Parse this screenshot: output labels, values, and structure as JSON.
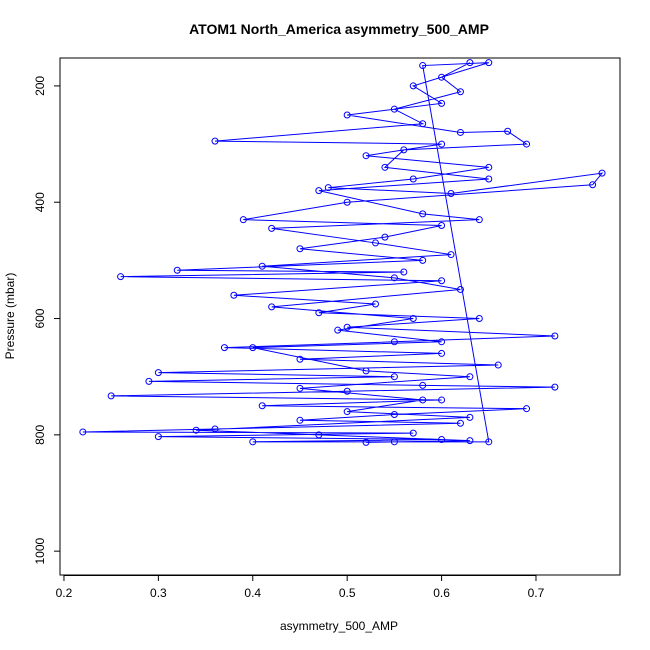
{
  "chart_data": {
    "type": "line",
    "title": "ATOM1 North_America asymmetry_500_AMP",
    "x_label": "asymmetry_500_AMP",
    "y_label": "Pressure (mbar)",
    "xlim": [
      0.1958,
      0.789
    ],
    "ylim": [
      1041,
      152
    ],
    "xticks": [
      0.2,
      0.3,
      0.4,
      0.5,
      0.6,
      0.7
    ],
    "yticks": [
      200,
      400,
      600,
      800,
      1000
    ],
    "series": [
      {
        "color": "#0000ff",
        "x": [
          0.63,
          0.6,
          0.62,
          0.55,
          0.58,
          0.36,
          0.6,
          0.52,
          0.65,
          0.57,
          0.48,
          0.61,
          0.77,
          0.76,
          0.5,
          0.39,
          0.6,
          0.54,
          0.45,
          0.58,
          0.32,
          0.56,
          0.26,
          0.6,
          0.38,
          0.53,
          0.47,
          0.64,
          0.5,
          0.72,
          0.55,
          0.37,
          0.6,
          0.45,
          0.66,
          0.3,
          0.55,
          0.29,
          0.58,
          0.72,
          0.5,
          0.25,
          0.6,
          0.41,
          0.69,
          0.55,
          0.45,
          0.62,
          0.36,
          0.22,
          0.57,
          0.3,
          0.6,
          0.4,
          0.55,
          0.65,
          0.58,
          0.65,
          0.57,
          0.6,
          0.5,
          0.62,
          0.67,
          0.69,
          0.56,
          0.54,
          0.65,
          0.47,
          0.58,
          0.64,
          0.42,
          0.53,
          0.61,
          0.41,
          0.55,
          0.62,
          0.42,
          0.57,
          0.49,
          0.6,
          0.4,
          0.52,
          0.63,
          0.45,
          0.58,
          0.5,
          0.63,
          0.34,
          0.47,
          0.63,
          0.52
        ],
        "values": [
          160,
          185,
          210,
          240,
          265,
          295,
          300,
          320,
          340,
          360,
          375,
          385,
          350,
          370,
          400,
          430,
          440,
          460,
          480,
          500,
          517,
          520,
          528,
          535,
          560,
          575,
          590,
          600,
          615,
          630,
          640,
          650,
          660,
          670,
          680,
          693,
          700,
          708,
          715,
          718,
          725,
          733,
          740,
          750,
          755,
          765,
          775,
          780,
          790,
          795,
          797,
          803,
          808,
          812,
          812,
          812,
          165,
          160,
          200,
          230,
          250,
          280,
          278,
          300,
          310,
          340,
          360,
          380,
          420,
          430,
          445,
          470,
          490,
          510,
          530,
          550,
          580,
          600,
          620,
          640,
          650,
          690,
          700,
          720,
          740,
          760,
          770,
          792,
          800,
          810,
          813
        ]
      }
    ]
  }
}
